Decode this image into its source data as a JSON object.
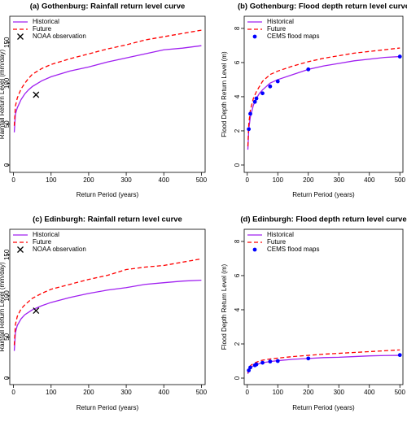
{
  "chart_data": [
    {
      "type": "line",
      "title": "(a) Gothenburg: Rainfall return level curve",
      "xlabel": "Return Period (years)",
      "ylabel": "Rainfall Return Level (mm/day)",
      "xlim": [
        -10,
        510
      ],
      "ylim": [
        -9,
        182
      ],
      "xticks": [
        0,
        100,
        200,
        300,
        400,
        500
      ],
      "yticks": [
        0,
        50,
        100,
        150
      ],
      "series": [
        {
          "name": "Historical",
          "color": "#a020f0",
          "linestyle": "solid",
          "marker": "none",
          "x": [
            2,
            5,
            10,
            20,
            30,
            40,
            50,
            75,
            100,
            150,
            200,
            250,
            300,
            350,
            400,
            450,
            500
          ],
          "values": [
            40,
            62,
            70,
            80,
            87,
            92,
            96,
            103,
            108,
            115,
            120,
            126,
            131,
            136,
            141,
            143,
            146
          ]
        },
        {
          "name": "Future",
          "color": "#ff0000",
          "linestyle": "dashed",
          "marker": "none",
          "x": [
            2,
            5,
            10,
            20,
            30,
            40,
            50,
            75,
            100,
            150,
            200,
            250,
            300,
            350,
            400,
            450,
            500
          ],
          "values": [
            48,
            72,
            82,
            93,
            100,
            106,
            111,
            118,
            123,
            130,
            136,
            142,
            147,
            153,
            157,
            161,
            165
          ]
        },
        {
          "name": "NOAA observation",
          "color": "#000000",
          "linestyle": "none",
          "marker": "x",
          "x": [
            60
          ],
          "values": [
            86
          ]
        }
      ]
    },
    {
      "type": "line",
      "title": "(b) Gothenburg: Flood depth return level curve",
      "xlabel": "Return Period (years)",
      "ylabel": "Flood Depth Return Level (m)",
      "xlim": [
        -10,
        510
      ],
      "ylim": [
        -0.43,
        8.71
      ],
      "xticks": [
        0,
        100,
        200,
        300,
        400,
        500
      ],
      "yticks": [
        0,
        2,
        4,
        6,
        8
      ],
      "series": [
        {
          "name": "Historical",
          "color": "#a020f0",
          "linestyle": "solid",
          "marker": "none",
          "x": [
            2,
            5,
            10,
            20,
            30,
            40,
            50,
            75,
            100,
            150,
            200,
            250,
            300,
            350,
            400,
            450,
            500
          ],
          "values": [
            0.9,
            2.1,
            2.8,
            3.5,
            3.9,
            4.2,
            4.4,
            4.8,
            5.0,
            5.3,
            5.6,
            5.8,
            5.95,
            6.1,
            6.2,
            6.3,
            6.35
          ]
        },
        {
          "name": "Future",
          "color": "#ff0000",
          "linestyle": "dashed",
          "marker": "none",
          "x": [
            2,
            5,
            10,
            20,
            30,
            40,
            50,
            75,
            100,
            150,
            200,
            250,
            300,
            350,
            400,
            450,
            500
          ],
          "values": [
            1.1,
            2.4,
            3.2,
            3.9,
            4.3,
            4.6,
            4.9,
            5.3,
            5.5,
            5.8,
            6.05,
            6.25,
            6.4,
            6.55,
            6.65,
            6.75,
            6.85
          ]
        },
        {
          "name": "CEMS flood maps",
          "color": "#0000ff",
          "linestyle": "none",
          "marker": "circle",
          "x": [
            5,
            10,
            25,
            30,
            50,
            75,
            100,
            200,
            500
          ],
          "values": [
            2.1,
            3.0,
            3.7,
            3.9,
            4.2,
            4.6,
            4.9,
            5.6,
            6.35
          ]
        }
      ]
    },
    {
      "type": "line",
      "title": "(c) Edinburgh: Rainfall return level curve",
      "xlabel": "Return Period (years)",
      "ylabel": "Rainfall Return Level (mm/day)",
      "xlim": [
        -10,
        510
      ],
      "ylim": [
        -8,
        181
      ],
      "xticks": [
        0,
        100,
        200,
        300,
        400,
        500
      ],
      "yticks": [
        0,
        50,
        100,
        150
      ],
      "series": [
        {
          "name": "Historical",
          "color": "#a020f0",
          "linestyle": "solid",
          "marker": "none",
          "x": [
            2,
            5,
            10,
            20,
            30,
            40,
            50,
            75,
            100,
            150,
            200,
            250,
            300,
            350,
            400,
            450,
            500
          ],
          "values": [
            33,
            55,
            64,
            72,
            77,
            80,
            83,
            88,
            92,
            98,
            103,
            107,
            110,
            114,
            116,
            118,
            119
          ]
        },
        {
          "name": "Future",
          "color": "#ff0000",
          "linestyle": "dashed",
          "marker": "none",
          "x": [
            2,
            5,
            10,
            20,
            30,
            40,
            50,
            75,
            100,
            150,
            200,
            250,
            300,
            350,
            400,
            450,
            500
          ],
          "values": [
            40,
            65,
            75,
            84,
            89,
            93,
            97,
            103,
            108,
            114,
            120,
            125,
            132,
            135,
            137,
            141,
            145
          ]
        },
        {
          "name": "NOAA observation",
          "color": "#000000",
          "linestyle": "none",
          "marker": "x",
          "x": [
            60
          ],
          "values": [
            82
          ]
        }
      ]
    },
    {
      "type": "line",
      "title": "(d) Edinburgh: Flood depth return level curve",
      "xlabel": "Return Period (years)",
      "ylabel": "Flood Depth Return Level (m)",
      "xlim": [
        -10,
        510
      ],
      "ylim": [
        -0.38,
        8.71
      ],
      "xticks": [
        0,
        100,
        200,
        300,
        400,
        500
      ],
      "yticks": [
        0,
        2,
        4,
        6,
        8
      ],
      "series": [
        {
          "name": "Historical",
          "color": "#a020f0",
          "linestyle": "solid",
          "marker": "none",
          "x": [
            2,
            5,
            10,
            20,
            30,
            40,
            50,
            75,
            100,
            150,
            200,
            250,
            300,
            350,
            400,
            450,
            500
          ],
          "values": [
            0.25,
            0.45,
            0.6,
            0.72,
            0.8,
            0.85,
            0.9,
            0.97,
            1.02,
            1.1,
            1.15,
            1.2,
            1.22,
            1.26,
            1.3,
            1.32,
            1.33
          ]
        },
        {
          "name": "Future",
          "color": "#ff0000",
          "linestyle": "dashed",
          "marker": "none",
          "x": [
            2,
            5,
            10,
            20,
            30,
            40,
            50,
            75,
            100,
            150,
            200,
            250,
            300,
            350,
            400,
            450,
            500
          ],
          "values": [
            0.3,
            0.55,
            0.72,
            0.85,
            0.93,
            1.0,
            1.05,
            1.12,
            1.17,
            1.26,
            1.33,
            1.4,
            1.45,
            1.5,
            1.55,
            1.6,
            1.65
          ]
        },
        {
          "name": "CEMS flood maps",
          "color": "#0000ff",
          "linestyle": "none",
          "marker": "circle",
          "x": [
            5,
            10,
            25,
            30,
            50,
            75,
            100,
            200,
            500
          ],
          "values": [
            0.45,
            0.62,
            0.75,
            0.8,
            0.9,
            0.97,
            1.0,
            1.15,
            1.35
          ]
        }
      ]
    }
  ]
}
